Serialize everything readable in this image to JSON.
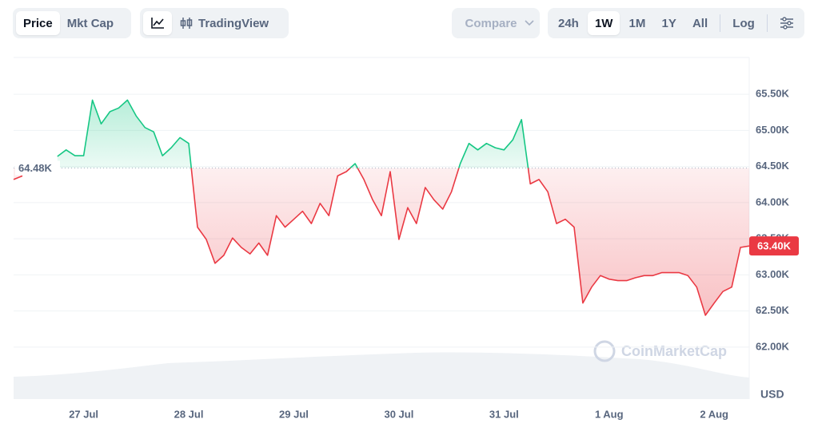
{
  "toolbar": {
    "price": "Price",
    "mkt_cap": "Mkt Cap",
    "trading_view": "TradingView",
    "compare": "Compare",
    "ranges": [
      "24h",
      "1W",
      "1M",
      "1Y",
      "All"
    ],
    "log": "Log"
  },
  "chart_data": {
    "type": "line",
    "currency": "USD",
    "watermark": "CoinMarketCap",
    "categories": [
      null,
      null,
      null,
      null,
      null,
      null,
      null,
      null,
      "27 Jul",
      null,
      null,
      null,
      null,
      null,
      null,
      null,
      null,
      null,
      null,
      null,
      "28 Jul",
      null,
      null,
      null,
      null,
      null,
      null,
      null,
      null,
      null,
      null,
      null,
      "29 Jul",
      null,
      null,
      null,
      null,
      null,
      null,
      null,
      null,
      null,
      null,
      null,
      "30 Jul",
      null,
      null,
      null,
      null,
      null,
      null,
      null,
      null,
      null,
      null,
      null,
      "31 Jul",
      null,
      null,
      null,
      null,
      null,
      null,
      null,
      null,
      null,
      null,
      null,
      "1 Aug",
      null,
      null,
      null,
      null,
      null,
      null,
      null,
      null,
      null,
      null,
      null,
      "2 Aug",
      null,
      null,
      null,
      null
    ],
    "series": [
      {
        "name": "Price",
        "color_up": "#16c784",
        "color_down": "#ea3943",
        "values": [
          64320,
          64370,
          null,
          null,
          null,
          64640,
          64730,
          64650,
          64650,
          65420,
          65090,
          65260,
          65310,
          65420,
          65200,
          65040,
          64980,
          64650,
          64760,
          64900,
          64820,
          63660,
          63490,
          63160,
          63270,
          63510,
          63380,
          63290,
          63440,
          63270,
          63820,
          63660,
          63770,
          63880,
          63710,
          63990,
          63820,
          64370,
          64430,
          64540,
          64320,
          64040,
          63820,
          64430,
          63490,
          63930,
          63710,
          64210,
          64040,
          63910,
          64150,
          64540,
          64820,
          64730,
          64820,
          64760,
          64730,
          64870,
          65150,
          64260,
          64320,
          64150,
          63710,
          63770,
          63660,
          62610,
          62830,
          62990,
          62940,
          62920,
          62920,
          62960,
          62990,
          62990,
          63030,
          63030,
          63030,
          62990,
          62830,
          62440,
          62610,
          62770,
          62830,
          63380,
          63400
        ],
        "end_label": "63.40K"
      }
    ],
    "baseline": {
      "value": 64480,
      "label": "64.48K"
    },
    "ylim": [
      61280,
      66010
    ],
    "yticks": [
      {
        "value": 62000,
        "label": "62.00K"
      },
      {
        "value": 62500,
        "label": "62.50K"
      },
      {
        "value": 63000,
        "label": "63.00K"
      },
      {
        "value": 63500,
        "label": "63.50K"
      },
      {
        "value": 64000,
        "label": "64.00K"
      },
      {
        "value": 64500,
        "label": "64.50K"
      },
      {
        "value": 65000,
        "label": "65.00K"
      },
      {
        "value": 65500,
        "label": "65.50K"
      }
    ],
    "grid": true
  }
}
